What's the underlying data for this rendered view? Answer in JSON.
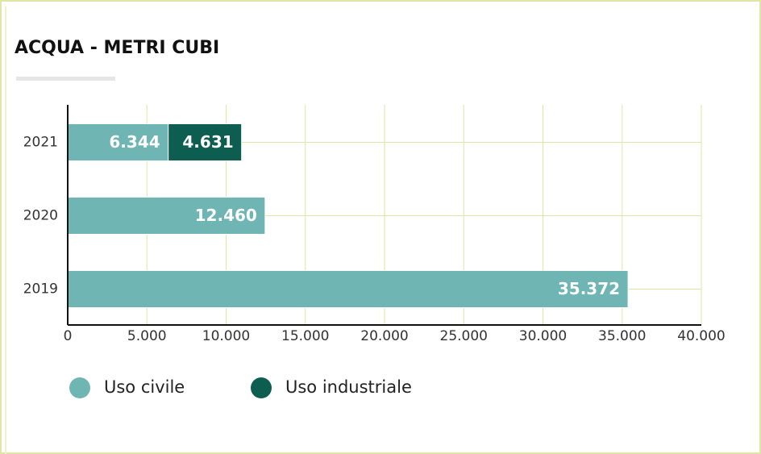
{
  "chart_data": {
    "type": "bar",
    "orientation": "horizontal",
    "stacked": true,
    "title": "ACQUA - METRI CUBI",
    "categories": [
      "2021",
      "2020",
      "2019"
    ],
    "series": [
      {
        "name": "Uso civile",
        "color": "#6fb5b3",
        "values": [
          6344,
          12460,
          35372
        ],
        "value_labels": [
          "6.344",
          "12.460",
          "35.372"
        ]
      },
      {
        "name": "Uso industriale",
        "color": "#0d5e50",
        "values": [
          4631,
          null,
          null
        ],
        "value_labels": [
          "4.631",
          null,
          null
        ]
      }
    ],
    "xlim": [
      0,
      40000
    ],
    "xticks": [
      0,
      {
        "value": 5000,
        "label": "5.000"
      },
      {
        "value": 10000,
        "label": "10.000"
      },
      {
        "value": 15000,
        "label": "15.000"
      },
      {
        "value": 20000,
        "label": "20.000"
      },
      {
        "value": 25000,
        "label": "25.000"
      },
      {
        "value": 30000,
        "label": "30.000"
      },
      {
        "value": 35000,
        "label": "35.000"
      },
      {
        "value": 40000,
        "label": "40.000"
      }
    ],
    "grid": true
  }
}
